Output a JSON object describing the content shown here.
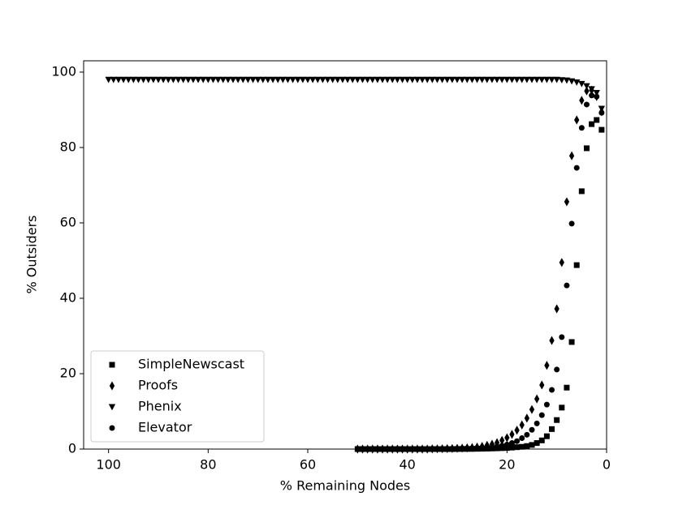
{
  "chart_data": {
    "type": "scatter",
    "x_label": "% Remaining Nodes",
    "y_label": "% Outsiders",
    "xlim": [
      105,
      0
    ],
    "ylim": [
      0,
      103
    ],
    "xticks": [
      100,
      80,
      60,
      40,
      20,
      0
    ],
    "yticks": [
      0,
      20,
      40,
      60,
      80,
      100
    ],
    "legend": "lower left",
    "series": [
      {
        "name": "SimpleNewscast",
        "color": "#000000",
        "marker": "square",
        "x": [
          50,
          49,
          48,
          47,
          46,
          45,
          44,
          43,
          42,
          41,
          40,
          39,
          38,
          37,
          36,
          35,
          34,
          33,
          32,
          31,
          30,
          29,
          28,
          27,
          26,
          25,
          24,
          23,
          22,
          21,
          20,
          19,
          18,
          17,
          16,
          15,
          14,
          13,
          12,
          11,
          10,
          9,
          8,
          7,
          6,
          5,
          4,
          3,
          2,
          1
        ],
        "values": [
          0,
          0,
          0,
          0,
          0,
          0,
          0,
          0,
          0,
          0,
          0,
          0,
          0,
          0,
          0,
          0,
          0,
          0,
          0,
          0,
          0.02,
          0.03,
          0.04,
          0.05,
          0.07,
          0.09,
          0.12,
          0.16,
          0.2,
          0.25,
          0.3,
          0.4,
          0.5,
          0.6,
          0.8,
          1.1,
          1.6,
          2.3,
          3.4,
          5.3,
          7.7,
          11,
          16.3,
          28.4,
          48.8,
          68.4,
          79.8,
          86.2,
          87.3,
          84.7
        ]
      },
      {
        "name": "Proofs",
        "color": "#000000",
        "marker": "diamond",
        "x": [
          50,
          49,
          48,
          47,
          46,
          45,
          44,
          43,
          42,
          41,
          40,
          39,
          38,
          37,
          36,
          35,
          34,
          33,
          32,
          31,
          30,
          29,
          28,
          27,
          26,
          25,
          24,
          23,
          22,
          21,
          20,
          19,
          18,
          17,
          16,
          15,
          14,
          13,
          12,
          11,
          10,
          9,
          8,
          7,
          6,
          5,
          4,
          3,
          2,
          1
        ],
        "values": [
          0,
          0,
          0,
          0,
          0,
          0,
          0,
          0,
          0,
          0,
          0,
          0,
          0,
          0,
          0,
          0.05,
          0.07,
          0.09,
          0.12,
          0.15,
          0.2,
          0.25,
          0.32,
          0.4,
          0.55,
          0.7,
          1.0,
          1.3,
          1.7,
          2.3,
          3.0,
          3.9,
          5.0,
          6.4,
          8.2,
          10.5,
          13.3,
          17,
          22.2,
          28.8,
          37.2,
          49.5,
          65.6,
          77.8,
          87.3,
          92.5,
          95,
          95.2,
          93.5,
          89.5
        ]
      },
      {
        "name": "Phenix",
        "color": "#000000",
        "marker": "triangle-down",
        "x": [
          100,
          99,
          98,
          97,
          96,
          95,
          94,
          93,
          92,
          91,
          90,
          89,
          88,
          87,
          86,
          85,
          84,
          83,
          82,
          81,
          80,
          79,
          78,
          77,
          76,
          75,
          74,
          73,
          72,
          71,
          70,
          69,
          68,
          67,
          66,
          65,
          64,
          63,
          62,
          61,
          60,
          59,
          58,
          57,
          56,
          55,
          54,
          53,
          52,
          51,
          50,
          49,
          48,
          47,
          46,
          45,
          44,
          43,
          42,
          41,
          40,
          39,
          38,
          37,
          36,
          35,
          34,
          33,
          32,
          31,
          30,
          29,
          28,
          27,
          26,
          25,
          24,
          23,
          22,
          21,
          20,
          19,
          18,
          17,
          16,
          15,
          14,
          13,
          12,
          11,
          10,
          9,
          8,
          7,
          6,
          5,
          4,
          3,
          2,
          1
        ],
        "values": [
          98,
          98,
          98,
          98,
          98,
          98,
          98,
          98,
          98,
          98,
          98,
          98,
          98,
          98,
          98,
          98,
          98,
          98,
          98,
          98,
          98,
          98,
          98,
          98,
          98,
          98,
          98,
          98,
          98,
          98,
          98,
          98,
          98,
          98,
          98,
          98,
          98,
          98,
          98,
          98,
          98,
          98,
          98,
          98,
          98,
          98,
          98,
          98,
          98,
          98,
          98,
          98,
          98,
          98,
          98,
          98,
          98,
          98,
          98,
          98,
          98,
          98,
          98,
          98,
          98,
          98,
          98,
          98,
          98,
          98,
          98,
          98,
          98,
          98,
          98,
          98,
          98,
          98,
          98,
          98,
          98,
          98,
          98,
          98,
          98,
          98,
          98,
          98,
          98,
          98,
          98,
          97.9,
          97.8,
          97.6,
          97.3,
          96.9,
          96.3,
          95.5,
          94.5,
          90.3
        ]
      },
      {
        "name": "Elevator",
        "color": "#000000",
        "marker": "circle",
        "x": [
          50,
          49,
          48,
          47,
          46,
          45,
          44,
          43,
          42,
          41,
          40,
          39,
          38,
          37,
          36,
          35,
          34,
          33,
          32,
          31,
          30,
          29,
          28,
          27,
          26,
          25,
          24,
          23,
          22,
          21,
          20,
          19,
          18,
          17,
          16,
          15,
          14,
          13,
          12,
          11,
          10,
          9,
          8,
          7,
          6,
          5,
          4,
          3,
          2,
          1
        ],
        "values": [
          0,
          0,
          0,
          0,
          0,
          0,
          0,
          0,
          0,
          0,
          0,
          0,
          0,
          0,
          0,
          0.01,
          0.02,
          0.03,
          0.04,
          0.06,
          0.08,
          0.1,
          0.13,
          0.17,
          0.22,
          0.3,
          0.4,
          0.5,
          0.7,
          0.9,
          1.2,
          1.6,
          2.1,
          2.9,
          3.8,
          5.1,
          6.8,
          9,
          11.8,
          15.7,
          21.1,
          29.7,
          43.4,
          59.8,
          74.6,
          85.2,
          91.4,
          93.8,
          93.5,
          89.2
        ]
      }
    ]
  }
}
